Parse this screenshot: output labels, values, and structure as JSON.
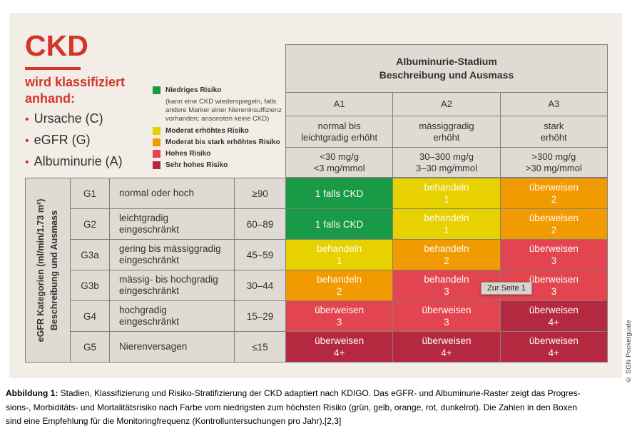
{
  "colors": {
    "accent_red": "#d3352b",
    "green": "#189a47",
    "yellow": "#e8d100",
    "orange": "#f19a01",
    "red": "#e24450",
    "darkred": "#b52940",
    "panel_beige": "#f2ede6",
    "cell_grey": "#dfdbd4"
  },
  "intro": {
    "title": "CKD",
    "subtitle": "wird klassifiziert anhand:",
    "bullet_glyph": "•",
    "bullets": [
      "Ursache (C)",
      "eGFR (G)",
      "Albuminurie (A)"
    ]
  },
  "legend": {
    "items": [
      {
        "color": "#189a47",
        "label": "Niedriges Risiko",
        "note": "(kann eine CKD wiederspiegeln, falls andere Marker einer Niereninsuffizienz vorhanden; ansonsten keine CKD)"
      },
      {
        "color": "#e8d100",
        "label": "Moderat erhöhtes Risiko",
        "note": ""
      },
      {
        "color": "#f19a01",
        "label": "Moderat bis stark erhöhtes Risiko",
        "note": ""
      },
      {
        "color": "#e24450",
        "label": "Hohes Risiko",
        "note": ""
      },
      {
        "color": "#b52940",
        "label": "Sehr hohes Risiko",
        "note": ""
      }
    ]
  },
  "albuminuria": {
    "header": "Albuminurie-Stadium\nBeschreibung und Ausmass",
    "columns": [
      {
        "id": "A1",
        "desc": "normal bis\nleichtgradig erhöht",
        "range": "<30 mg/g\n<3 mg/mmol"
      },
      {
        "id": "A2",
        "desc": "mässiggradig\nerhöht",
        "range": "30–300 mg/g\n3–30 mg/mmol"
      },
      {
        "id": "A3",
        "desc": "stark\nerhöht",
        "range": ">300 mg/g\n>30 mg/mmol"
      }
    ]
  },
  "egfr": {
    "axis": "eGFR Kategorien (ml/min/1.73 m²)\nBeschreibung und Ausmass",
    "rows": [
      {
        "id": "G1",
        "desc": "normal oder hoch",
        "range": "≥90"
      },
      {
        "id": "G2",
        "desc": "leichtgradig\neingeschränkt",
        "range": "60–89"
      },
      {
        "id": "G3a",
        "desc": "gering bis mässiggradig\neingeschränkt",
        "range": "45–59"
      },
      {
        "id": "G3b",
        "desc": "mässig- bis hochgradig\neingeschränkt",
        "range": "30–44"
      },
      {
        "id": "G4",
        "desc": "hochgradig\neingeschränkt",
        "range": "15–29"
      },
      {
        "id": "G5",
        "desc": "Nierenversagen",
        "range": "≤15"
      }
    ]
  },
  "matrix": {
    "rows": [
      {
        "cells": [
          {
            "label": "1 falls CKD",
            "value": "",
            "risk": "low",
            "color": "#189a47"
          },
          {
            "label": "behandeln",
            "value": "1",
            "risk": "moderate",
            "color": "#e8d100"
          },
          {
            "label": "überweisen",
            "value": "2",
            "risk": "moderate-high",
            "color": "#f19a01"
          }
        ]
      },
      {
        "cells": [
          {
            "label": "1 falls CKD",
            "value": "",
            "risk": "low",
            "color": "#189a47"
          },
          {
            "label": "behandeln",
            "value": "1",
            "risk": "moderate",
            "color": "#e8d100"
          },
          {
            "label": "überweisen",
            "value": "2",
            "risk": "moderate-high",
            "color": "#f19a01"
          }
        ]
      },
      {
        "cells": [
          {
            "label": "behandeln",
            "value": "1",
            "risk": "moderate",
            "color": "#e8d100"
          },
          {
            "label": "behandeln",
            "value": "2",
            "risk": "moderate-high",
            "color": "#f19a01"
          },
          {
            "label": "überweisen",
            "value": "3",
            "risk": "high",
            "color": "#e24450"
          }
        ]
      },
      {
        "cells": [
          {
            "label": "behandeln",
            "value": "2",
            "risk": "moderate-high",
            "color": "#f19a01"
          },
          {
            "label": "behandeln",
            "value": "3",
            "risk": "high",
            "color": "#e24450"
          },
          {
            "label": "überweisen",
            "value": "3",
            "risk": "high",
            "color": "#e24450"
          }
        ]
      },
      {
        "cells": [
          {
            "label": "überweisen",
            "value": "3",
            "risk": "high",
            "color": "#e24450"
          },
          {
            "label": "überweisen",
            "value": "3",
            "risk": "high",
            "color": "#e24450"
          },
          {
            "label": "überweisen",
            "value": "4+",
            "risk": "very-high",
            "color": "#b52940"
          }
        ]
      },
      {
        "cells": [
          {
            "label": "überweisen",
            "value": "4+",
            "risk": "very-high",
            "color": "#b52940"
          },
          {
            "label": "überweisen",
            "value": "4+",
            "risk": "very-high",
            "color": "#b52940"
          },
          {
            "label": "überweisen",
            "value": "4+",
            "risk": "very-high",
            "color": "#b52940"
          }
        ]
      }
    ]
  },
  "tooltip": {
    "text": "Zur Seite 1"
  },
  "credit": "© SGN Pocketguide",
  "caption": {
    "label": "Abbildung 1:",
    "text": " Stadien, Klassifizierung und Risiko-Stratifizierung der CKD adaptiert nach KDIGO. Das eGFR- und Albuminurie-Raster zeigt das Progres-\nsions-, Morbiditäts- und Mortalitätsrisiko nach Farbe vom niedrigsten zum höchsten Risiko (grün, gelb, orange, rot, dunkelrot). Die Zahlen in den Boxen\nsind eine Empfehlung für die Monitoringfrequenz (Kontrolluntersuchungen pro Jahr).[2,3]"
  }
}
